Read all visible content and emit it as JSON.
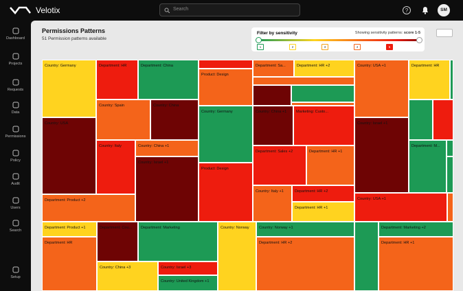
{
  "app": {
    "brand": "Velotix",
    "search_placeholder": "Search",
    "avatar": "SM"
  },
  "nav": [
    "Dashboard",
    "Projects",
    "Requests",
    "Data",
    "Permissions",
    "Policy",
    "Audit",
    "Users",
    "Search",
    "Setup"
  ],
  "header": {
    "title": "Permissions Patterns",
    "subtitle": "51 Permission patterns available"
  },
  "filter": {
    "title": "Filter by sensitivity",
    "status": "Showing sensitivity patterns:",
    "score": "score 1-5",
    "levels": [
      1,
      2,
      3,
      4,
      5
    ]
  },
  "treemap": {
    "tiles": [
      "Country: Germany",
      "Country: USA",
      "Department: Product +2",
      "Department: HR",
      "Country: Spain",
      "Country: Italy",
      "Department: China",
      "Country: China",
      "Country: China +1",
      "Country: Israel +1",
      "Product: Design",
      "Country: Germany",
      "Product: Design",
      "Department: Sa...",
      "Department: HR +2",
      "Country: China +1",
      "Marketing: Custo...",
      "Department: Sales +2",
      "Department: HR +1",
      "Country: Italy +1",
      "Department: HR +2",
      "Department: HR +1",
      "Country: USA +1",
      "Country: Israel +1",
      "Country: USA +1",
      "Department: HR",
      "Department: M...",
      "Department: Product +1",
      "Department: HR",
      "Department: Cou...",
      "Department: Marketing",
      "Country: Norway",
      "Country: China +3",
      "Country: Israel +3",
      "Country: United Kingdom +1",
      "Country: Norway +1",
      "Department: HR +2",
      "Department: Marketing +2",
      "Department: HR +1"
    ]
  }
}
